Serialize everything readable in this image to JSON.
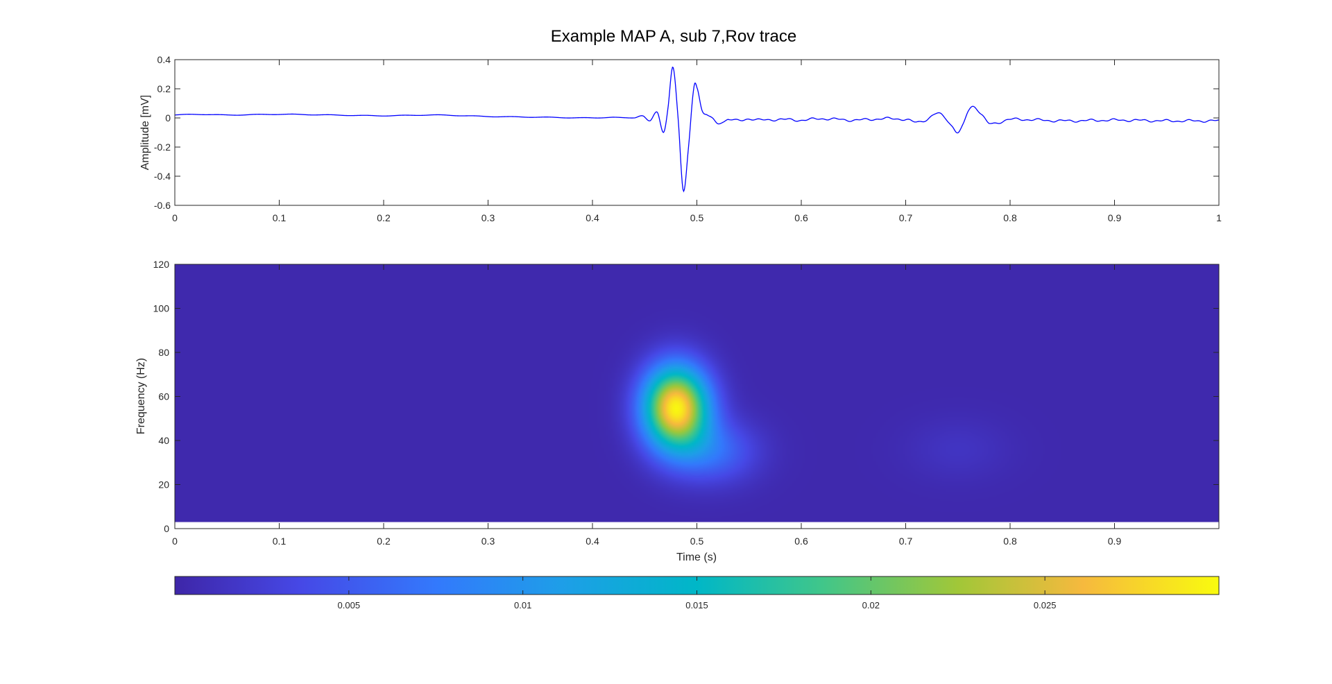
{
  "figure": {
    "title": "Example MAP A, sub 7,Rov trace"
  },
  "chart_data": [
    {
      "type": "line",
      "title": "Example MAP A, sub 7,Rov trace",
      "xlabel": "",
      "ylabel": "Amplitude [mV]",
      "xlim": [
        0,
        1
      ],
      "ylim": [
        -0.6,
        0.4
      ],
      "xticks": [
        0,
        0.1,
        0.2,
        0.3,
        0.4,
        0.5,
        0.6,
        0.7,
        0.8,
        0.9,
        1
      ],
      "xtick_labels": [
        "0",
        "0.1",
        "0.2",
        "0.3",
        "0.4",
        "0.5",
        "0.6",
        "0.7",
        "0.8",
        "0.9",
        "1"
      ],
      "yticks": [
        -0.6,
        -0.4,
        -0.2,
        0,
        0.2,
        0.4
      ],
      "ytick_labels": [
        "-0.6",
        "-0.4",
        "-0.2",
        "0",
        "0.2",
        "0.4"
      ],
      "grid": false,
      "line_color": "#0000ff",
      "series": [
        {
          "x": [
            0,
            0.02,
            0.05,
            0.1,
            0.15,
            0.2,
            0.25,
            0.3,
            0.35,
            0.4,
            0.42,
            0.44,
            0.448,
            0.455,
            0.462,
            0.468,
            0.472,
            0.477,
            0.482,
            0.487,
            0.492,
            0.497,
            0.5,
            0.505,
            0.51,
            0.515,
            0.52,
            0.525,
            0.53,
            0.54,
            0.55,
            0.56,
            0.58,
            0.6,
            0.62,
            0.65,
            0.68,
            0.7,
            0.71,
            0.72,
            0.73,
            0.738,
            0.745,
            0.75,
            0.755,
            0.76,
            0.765,
            0.772,
            0.78,
            0.8,
            0.85,
            0.9,
            0.95,
            1.0
          ],
          "y": [
            0.02,
            0.025,
            0.02,
            0.025,
            0.02,
            0.015,
            0.02,
            0.01,
            0.005,
            0.0,
            0.005,
            0.0,
            0.015,
            -0.02,
            0.04,
            -0.1,
            0.05,
            0.35,
            0.0,
            -0.5,
            -0.2,
            0.2,
            0.21,
            0.05,
            0.02,
            0.0,
            -0.04,
            -0.03,
            -0.01,
            -0.02,
            -0.005,
            -0.015,
            -0.01,
            -0.015,
            -0.005,
            -0.015,
            -0.005,
            -0.01,
            -0.03,
            -0.01,
            0.03,
            0.0,
            -0.06,
            -0.1,
            -0.05,
            0.05,
            0.08,
            0.03,
            -0.04,
            -0.01,
            -0.02,
            -0.015,
            -0.02,
            -0.02
          ]
        }
      ]
    },
    {
      "type": "heatmap",
      "xlabel": "Time (s)",
      "ylabel": "Frequency (Hz)",
      "xlim": [
        0,
        1
      ],
      "ylim": [
        0,
        120
      ],
      "data_ylim": [
        3,
        120
      ],
      "xticks": [
        0,
        0.1,
        0.2,
        0.3,
        0.4,
        0.5,
        0.6,
        0.7,
        0.8,
        0.9
      ],
      "xtick_labels": [
        "0",
        "0.1",
        "0.2",
        "0.3",
        "0.4",
        "0.5",
        "0.6",
        "0.7",
        "0.8",
        "0.9"
      ],
      "yticks": [
        0,
        20,
        40,
        60,
        80,
        100,
        120
      ],
      "ytick_labels": [
        "0",
        "20",
        "40",
        "60",
        "80",
        "100",
        "120"
      ],
      "background_value": 0.0003,
      "blobs": [
        {
          "t": 0.48,
          "f": 55,
          "amplitude": 0.029,
          "sigma_t": 0.022,
          "sigma_f": 13
        },
        {
          "t": 0.515,
          "f": 35,
          "amplitude": 0.006,
          "sigma_t": 0.03,
          "sigma_f": 10
        },
        {
          "t": 0.75,
          "f": 36,
          "amplitude": 0.0012,
          "sigma_t": 0.035,
          "sigma_f": 10
        }
      ],
      "colormap": "parula",
      "colorbar": {
        "location": "bottom",
        "range": [
          0,
          0.03
        ],
        "ticks": [
          0.005,
          0.01,
          0.015,
          0.02,
          0.025
        ],
        "tick_labels": [
          "0.005",
          "0.01",
          "0.015",
          "0.02",
          "0.025"
        ]
      }
    }
  ]
}
